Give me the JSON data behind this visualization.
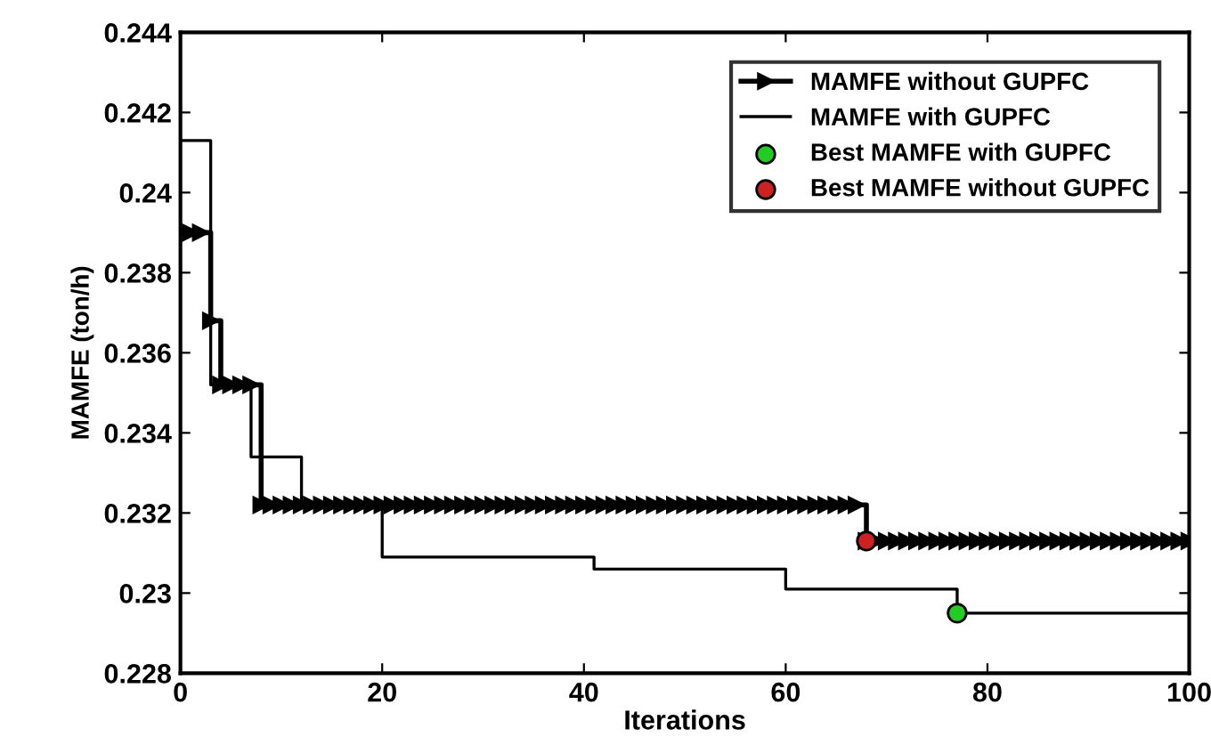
{
  "chart_data": {
    "type": "step",
    "xlabel": "Iterations",
    "ylabel": "MAMFE (ton/h)",
    "x": [
      0,
      1,
      2,
      3,
      4,
      5,
      6,
      7,
      8,
      9,
      10,
      11,
      12,
      13,
      14,
      15,
      16,
      17,
      18,
      19,
      20,
      21,
      22,
      23,
      24,
      25,
      26,
      27,
      28,
      29,
      30,
      31,
      32,
      33,
      34,
      35,
      36,
      37,
      38,
      39,
      40,
      41,
      42,
      43,
      44,
      45,
      46,
      47,
      48,
      49,
      50,
      51,
      52,
      53,
      54,
      55,
      56,
      57,
      58,
      59,
      60,
      61,
      62,
      63,
      64,
      65,
      66,
      67,
      68,
      69,
      70,
      71,
      72,
      73,
      74,
      75,
      76,
      77,
      78,
      79,
      80,
      81,
      82,
      83,
      84,
      85,
      86,
      87,
      88,
      89,
      90,
      91,
      92,
      93,
      94,
      95,
      96,
      97,
      98,
      99,
      100
    ],
    "series": [
      {
        "name": "MAMFE without GUPFC",
        "color": "#000000",
        "marker": "triangle",
        "values": [
          0.239,
          0.239,
          0.239,
          0.2368,
          0.2352,
          0.2352,
          0.2352,
          0.2352,
          0.2322,
          0.2322,
          0.2322,
          0.2322,
          0.2322,
          0.2322,
          0.2322,
          0.2322,
          0.2322,
          0.2322,
          0.2322,
          0.2322,
          0.2322,
          0.2322,
          0.2322,
          0.2322,
          0.2322,
          0.2322,
          0.2322,
          0.2322,
          0.2322,
          0.2322,
          0.2322,
          0.2322,
          0.2322,
          0.2322,
          0.2322,
          0.2322,
          0.2322,
          0.2322,
          0.2322,
          0.2322,
          0.2322,
          0.2322,
          0.2322,
          0.2322,
          0.2322,
          0.2322,
          0.2322,
          0.2322,
          0.2322,
          0.2322,
          0.2322,
          0.2322,
          0.2322,
          0.2322,
          0.2322,
          0.2322,
          0.2322,
          0.2322,
          0.2322,
          0.2322,
          0.2322,
          0.2322,
          0.2322,
          0.2322,
          0.2322,
          0.2322,
          0.2322,
          0.2322,
          0.2313,
          0.2313,
          0.2313,
          0.2313,
          0.2313,
          0.2313,
          0.2313,
          0.2313,
          0.2313,
          0.2313,
          0.2313,
          0.2313,
          0.2313,
          0.2313,
          0.2313,
          0.2313,
          0.2313,
          0.2313,
          0.2313,
          0.2313,
          0.2313,
          0.2313,
          0.2313,
          0.2313,
          0.2313,
          0.2313,
          0.2313,
          0.2313,
          0.2313,
          0.2313,
          0.2313,
          0.2313,
          0.2313
        ]
      },
      {
        "name": "MAMFE with GUPFC",
        "color": "#000000",
        "marker": "none",
        "values": [
          0.2413,
          0.2413,
          0.2413,
          0.2352,
          0.2352,
          0.2352,
          0.2352,
          0.2334,
          0.2334,
          0.2334,
          0.2334,
          0.2334,
          0.2322,
          0.2322,
          0.2322,
          0.2322,
          0.2322,
          0.2322,
          0.2322,
          0.2322,
          0.2309,
          0.2309,
          0.2309,
          0.2309,
          0.2309,
          0.2309,
          0.2309,
          0.2309,
          0.2309,
          0.2309,
          0.2309,
          0.2309,
          0.2309,
          0.2309,
          0.2309,
          0.2309,
          0.2309,
          0.2309,
          0.2309,
          0.2309,
          0.2309,
          0.2306,
          0.2306,
          0.2306,
          0.2306,
          0.2306,
          0.2306,
          0.2306,
          0.2306,
          0.2306,
          0.2306,
          0.2306,
          0.2306,
          0.2306,
          0.2306,
          0.2306,
          0.2306,
          0.2306,
          0.2306,
          0.2306,
          0.2301,
          0.2301,
          0.2301,
          0.2301,
          0.2301,
          0.2301,
          0.2301,
          0.2301,
          0.2301,
          0.2301,
          0.2301,
          0.2301,
          0.2301,
          0.2301,
          0.2301,
          0.2301,
          0.2301,
          0.2295,
          0.2295,
          0.2295,
          0.2295,
          0.2295,
          0.2295,
          0.2295,
          0.2295,
          0.2295,
          0.2295,
          0.2295,
          0.2295,
          0.2295,
          0.2295,
          0.2295,
          0.2295,
          0.2295,
          0.2295,
          0.2295,
          0.2295,
          0.2295,
          0.2295,
          0.2295,
          0.2295
        ]
      },
      {
        "name": "Best MAMFE with GUPFC",
        "type": "scatter",
        "color": "#22cc22",
        "marker": "circle",
        "x": [
          77
        ],
        "values": [
          0.2295
        ]
      },
      {
        "name": "Best MAMFE without GUPFC",
        "type": "scatter",
        "color": "#cc2222",
        "marker": "circle",
        "x": [
          68
        ],
        "values": [
          0.2313
        ]
      }
    ],
    "xlim": [
      0,
      100
    ],
    "xticks": [
      0,
      20,
      40,
      60,
      80,
      100
    ],
    "ylim": [
      0.228,
      0.244
    ],
    "yticks": [
      0.228,
      0.23,
      0.232,
      0.234,
      0.236,
      0.238,
      0.24,
      0.242,
      0.244
    ],
    "legend": "top right",
    "grid": false
  }
}
